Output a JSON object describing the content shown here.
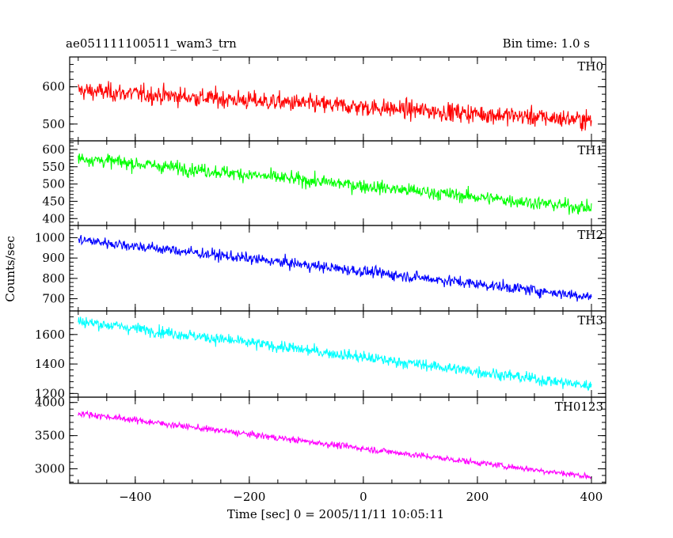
{
  "chart_data": {
    "type": "line",
    "title": "ae051111100511_wam3_trn",
    "subtitle": "Bin time: 1.0 s",
    "xlabel": "Time [sec] 0 = 2005/11/11 10:05:11",
    "ylabel": "Counts/sec",
    "xlim": [
      -515,
      425
    ],
    "x_ticks": [
      -400,
      -200,
      0,
      200,
      400
    ],
    "x_range_data": [
      -500,
      400
    ],
    "grid": false,
    "panels": [
      {
        "name": "TH0",
        "color": "#ff0000",
        "ylim": [
          455,
          680
        ],
        "y_ticks": [
          500,
          600
        ],
        "trend": [
          {
            "x": -500,
            "y": 590
          },
          {
            "x": 400,
            "y": 510
          }
        ],
        "noise": 32
      },
      {
        "name": "TH1",
        "color": "#00ff00",
        "ylim": [
          380,
          625
        ],
        "y_ticks": [
          400,
          450,
          500,
          550,
          600
        ],
        "trend": [
          {
            "x": -500,
            "y": 575
          },
          {
            "x": 400,
            "y": 430
          }
        ],
        "noise": 25
      },
      {
        "name": "TH2",
        "color": "#0000ff",
        "ylim": [
          640,
          1060
        ],
        "y_ticks": [
          700,
          800,
          900,
          1000
        ],
        "trend": [
          {
            "x": -500,
            "y": 990
          },
          {
            "x": 400,
            "y": 710
          }
        ],
        "noise": 35
      },
      {
        "name": "TH3",
        "color": "#00ffff",
        "ylim": [
          1175,
          1760
        ],
        "y_ticks": [
          1200,
          1400,
          1600
        ],
        "trend": [
          {
            "x": -500,
            "y": 1690
          },
          {
            "x": 400,
            "y": 1250
          }
        ],
        "noise": 50
      },
      {
        "name": "TH0123",
        "color": "#ff00ff",
        "ylim": [
          2780,
          4080
        ],
        "y_ticks": [
          3000,
          3500,
          4000
        ],
        "trend": [
          {
            "x": -500,
            "y": 3840
          },
          {
            "x": 400,
            "y": 2880
          }
        ],
        "noise": 60
      }
    ]
  }
}
